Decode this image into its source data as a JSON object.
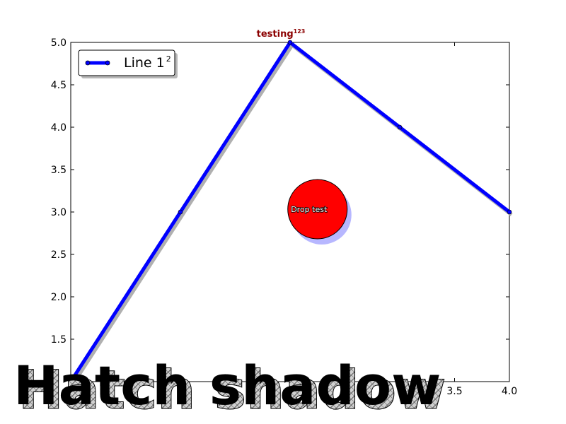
{
  "chart_data": {
    "type": "line",
    "title": "testing",
    "title_superscript": "123",
    "x": [
      0,
      1,
      2,
      3,
      4
    ],
    "series": [
      {
        "name": "Line 1",
        "name_superscript": "2",
        "values": [
          1,
          3,
          5,
          4,
          3
        ],
        "color": "#0000ff"
      }
    ],
    "xlim": [
      0,
      4
    ],
    "ylim": [
      1.0,
      5.0
    ],
    "yticks": [
      "1.5",
      "2.0",
      "2.5",
      "3.0",
      "3.5",
      "4.0",
      "4.5",
      "5.0"
    ],
    "xticks_visible": [
      "3.5",
      "4.0"
    ],
    "grid": false,
    "legend": "top-left",
    "annotations": [
      {
        "text": "Drop test",
        "x": 2.25,
        "y": 3.0,
        "fill": "#ff0000"
      },
      {
        "text": "Hatch shadow",
        "position": "bottom-left"
      }
    ]
  }
}
